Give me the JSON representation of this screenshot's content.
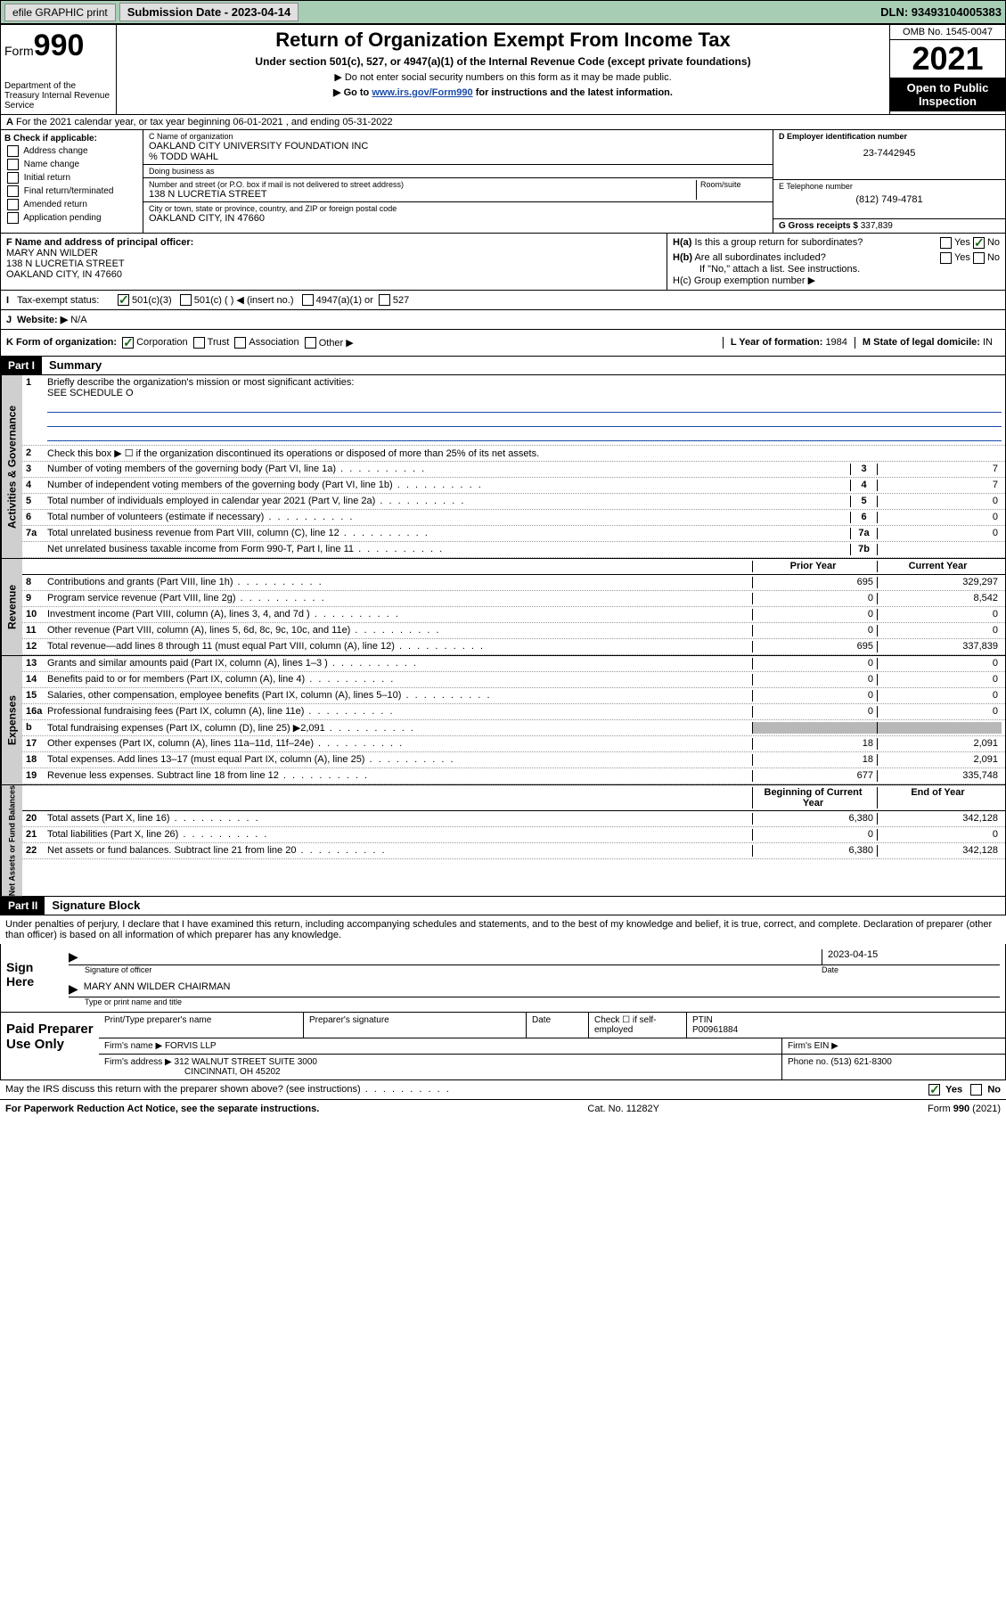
{
  "topbar": {
    "efile": "efile GRAPHIC print",
    "submission_label": "Submission Date - 2023-04-14",
    "dln": "DLN: 93493104005383"
  },
  "header": {
    "form": "Form",
    "form_num": "990",
    "dept": "Department of the Treasury Internal Revenue Service",
    "title": "Return of Organization Exempt From Income Tax",
    "sub1": "Under section 501(c), 527, or 4947(a)(1) of the Internal Revenue Code (except private foundations)",
    "sub2": "▶ Do not enter social security numbers on this form as it may be made public.",
    "sub3_pre": "▶ Go to ",
    "sub3_link": "www.irs.gov/Form990",
    "sub3_post": " for instructions and the latest information.",
    "omb": "OMB No. 1545-0047",
    "year": "2021",
    "open": "Open to Public Inspection"
  },
  "row_a": "For the 2021 calendar year, or tax year beginning 06-01-2021  , and ending 05-31-2022",
  "col_b": {
    "hdr": "B Check if applicable:",
    "items": [
      "Address change",
      "Name change",
      "Initial return",
      "Final return/terminated",
      "Amended return",
      "Application pending"
    ]
  },
  "col_c": {
    "name_lbl": "C Name of organization",
    "name": "OAKLAND CITY UNIVERSITY FOUNDATION INC",
    "care": "% TODD WAHL",
    "dba_lbl": "Doing business as",
    "addr_lbl": "Number and street (or P.O. box if mail is not delivered to street address)",
    "room_lbl": "Room/suite",
    "addr": "138 N LUCRETIA STREET",
    "city_lbl": "City or town, state or province, country, and ZIP or foreign postal code",
    "city": "OAKLAND CITY, IN  47660"
  },
  "col_d": {
    "ein_lbl": "D Employer identification number",
    "ein": "23-7442945",
    "tel_lbl": "E Telephone number",
    "tel": "(812) 749-4781",
    "gross_lbl": "G Gross receipts $ ",
    "gross": "337,839"
  },
  "row_f": {
    "lbl": "F Name and address of principal officer:",
    "name": "MARY ANN WILDER",
    "addr1": "138 N LUCRETIA STREET",
    "addr2": "OAKLAND CITY, IN  47660"
  },
  "row_h": {
    "ha": "H(a)  Is this a group return for subordinates?",
    "hb": "H(b)  Are all subordinates included?",
    "hb2": "If \"No,\" attach a list. See instructions.",
    "hc": "H(c)  Group exemption number ▶",
    "yes": "Yes",
    "no": "No"
  },
  "row_i": {
    "lbl": "Tax-exempt status:",
    "o1": "501(c)(3)",
    "o2": "501(c) (  ) ◀ (insert no.)",
    "o3": "4947(a)(1) or",
    "o4": "527"
  },
  "row_j": {
    "lbl": "Website: ▶",
    "val": "N/A"
  },
  "row_k": {
    "lbl": "K Form of organization:",
    "opts": [
      "Corporation",
      "Trust",
      "Association",
      "Other ▶"
    ],
    "l_lbl": "L Year of formation: ",
    "l_val": "1984",
    "m_lbl": "M State of legal domicile: ",
    "m_val": "IN"
  },
  "part1": {
    "hdr": "Part I",
    "title": "Summary",
    "q1": "Briefly describe the organization's mission or most significant activities:",
    "q1_val": "SEE SCHEDULE O",
    "q2": "Check this box ▶ ☐  if the organization discontinued its operations or disposed of more than 25% of its net assets.",
    "tabs": {
      "gov": "Activities & Governance",
      "rev": "Revenue",
      "exp": "Expenses",
      "net": "Net Assets or Fund Balances"
    },
    "rows": [
      {
        "n": "3",
        "t": "Number of voting members of the governing body (Part VI, line 1a)",
        "box": "3",
        "v2": "7"
      },
      {
        "n": "4",
        "t": "Number of independent voting members of the governing body (Part VI, line 1b)",
        "box": "4",
        "v2": "7"
      },
      {
        "n": "5",
        "t": "Total number of individuals employed in calendar year 2021 (Part V, line 2a)",
        "box": "5",
        "v2": "0"
      },
      {
        "n": "6",
        "t": "Total number of volunteers (estimate if necessary)",
        "box": "6",
        "v2": "0"
      },
      {
        "n": "7a",
        "t": "Total unrelated business revenue from Part VIII, column (C), line 12",
        "box": "7a",
        "v2": "0"
      },
      {
        "n": "",
        "t": "Net unrelated business taxable income from Form 990-T, Part I, line 11",
        "box": "7b",
        "v2": ""
      }
    ],
    "hdr_prior": "Prior Year",
    "hdr_curr": "Current Year",
    "rev_rows": [
      {
        "n": "8",
        "t": "Contributions and grants (Part VIII, line 1h)",
        "v1": "695",
        "v2": "329,297"
      },
      {
        "n": "9",
        "t": "Program service revenue (Part VIII, line 2g)",
        "v1": "0",
        "v2": "8,542"
      },
      {
        "n": "10",
        "t": "Investment income (Part VIII, column (A), lines 3, 4, and 7d )",
        "v1": "0",
        "v2": "0"
      },
      {
        "n": "11",
        "t": "Other revenue (Part VIII, column (A), lines 5, 6d, 8c, 9c, 10c, and 11e)",
        "v1": "0",
        "v2": "0"
      },
      {
        "n": "12",
        "t": "Total revenue—add lines 8 through 11 (must equal Part VIII, column (A), line 12)",
        "v1": "695",
        "v2": "337,839"
      }
    ],
    "exp_rows": [
      {
        "n": "13",
        "t": "Grants and similar amounts paid (Part IX, column (A), lines 1–3 )",
        "v1": "0",
        "v2": "0"
      },
      {
        "n": "14",
        "t": "Benefits paid to or for members (Part IX, column (A), line 4)",
        "v1": "0",
        "v2": "0"
      },
      {
        "n": "15",
        "t": "Salaries, other compensation, employee benefits (Part IX, column (A), lines 5–10)",
        "v1": "0",
        "v2": "0"
      },
      {
        "n": "16a",
        "t": "Professional fundraising fees (Part IX, column (A), line 11e)",
        "v1": "0",
        "v2": "0"
      },
      {
        "n": "b",
        "t": "Total fundraising expenses (Part IX, column (D), line 25) ▶2,091",
        "v1": "",
        "v2": "",
        "shade": true
      },
      {
        "n": "17",
        "t": "Other expenses (Part IX, column (A), lines 11a–11d, 11f–24e)",
        "v1": "18",
        "v2": "2,091"
      },
      {
        "n": "18",
        "t": "Total expenses. Add lines 13–17 (must equal Part IX, column (A), line 25)",
        "v1": "18",
        "v2": "2,091"
      },
      {
        "n": "19",
        "t": "Revenue less expenses. Subtract line 18 from line 12",
        "v1": "677",
        "v2": "335,748"
      }
    ],
    "hdr_beg": "Beginning of Current Year",
    "hdr_end": "End of Year",
    "net_rows": [
      {
        "n": "20",
        "t": "Total assets (Part X, line 16)",
        "v1": "6,380",
        "v2": "342,128"
      },
      {
        "n": "21",
        "t": "Total liabilities (Part X, line 26)",
        "v1": "0",
        "v2": "0"
      },
      {
        "n": "22",
        "t": "Net assets or fund balances. Subtract line 21 from line 20",
        "v1": "6,380",
        "v2": "342,128"
      }
    ]
  },
  "part2": {
    "hdr": "Part II",
    "title": "Signature Block",
    "decl": "Under penalties of perjury, I declare that I have examined this return, including accompanying schedules and statements, and to the best of my knowledge and belief, it is true, correct, and complete. Declaration of preparer (other than officer) is based on all information of which preparer has any knowledge."
  },
  "sign": {
    "lbl": "Sign Here",
    "sig_lbl": "Signature of officer",
    "date_lbl": "Date",
    "date": "2023-04-15",
    "name": "MARY ANN WILDER  CHAIRMAN",
    "name_lbl": "Type or print name and title"
  },
  "prep": {
    "lbl": "Paid Preparer Use Only",
    "h1": "Print/Type preparer's name",
    "h2": "Preparer's signature",
    "h3": "Date",
    "h4": "Check ☐ if self-employed",
    "h5_lbl": "PTIN",
    "h5": "P00961884",
    "firm_lbl": "Firm's name   ▶ ",
    "firm": "FORVIS LLP",
    "ein_lbl": "Firm's EIN ▶",
    "addr_lbl": "Firm's address ▶ ",
    "addr1": "312 WALNUT STREET SUITE 3000",
    "addr2": "CINCINNATI, OH  45202",
    "phone_lbl": "Phone no. ",
    "phone": "(513) 621-8300"
  },
  "footer": {
    "q": "May the IRS discuss this return with the preparer shown above? (see instructions)",
    "yes": "Yes",
    "no": "No",
    "pra": "For Paperwork Reduction Act Notice, see the separate instructions.",
    "cat": "Cat. No. 11282Y",
    "form": "Form 990 (2021)"
  }
}
